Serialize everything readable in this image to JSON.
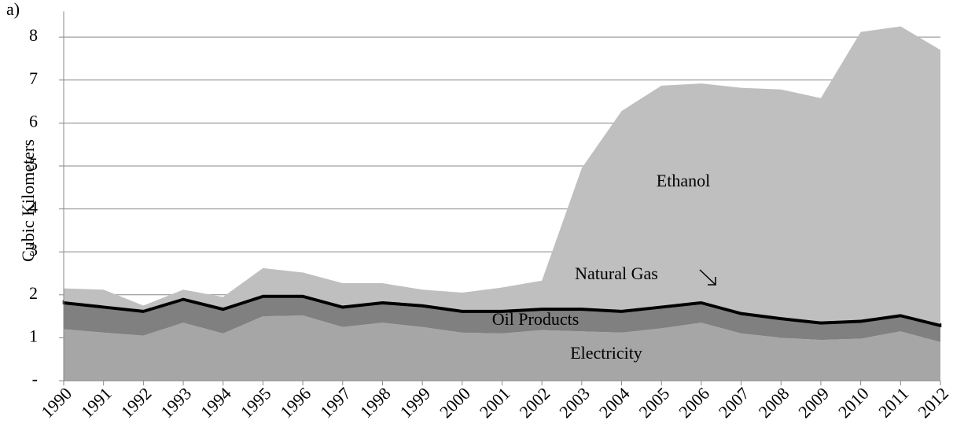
{
  "chart_data": {
    "type": "stacked-area",
    "panel_label": "a)",
    "y_label": "Cubic Kilometers",
    "categories": [
      "1990",
      "1991",
      "1992",
      "1993",
      "1994",
      "1995",
      "1996",
      "1997",
      "1998",
      "1999",
      "2000",
      "2001",
      "2002",
      "2003",
      "2004",
      "2005",
      "2006",
      "2007",
      "2008",
      "2009",
      "2010",
      "2011",
      "2012"
    ],
    "series": [
      {
        "name": "Electricity",
        "color": "#a6a6a6",
        "values": [
          1.2,
          1.12,
          1.05,
          1.35,
          1.1,
          1.5,
          1.52,
          1.25,
          1.35,
          1.25,
          1.12,
          1.1,
          1.18,
          1.15,
          1.12,
          1.22,
          1.35,
          1.1,
          1.0,
          0.95,
          0.98,
          1.15,
          0.9
        ]
      },
      {
        "name": "Oil Products",
        "color": "#808080",
        "values": [
          0.6,
          0.58,
          0.55,
          0.53,
          0.55,
          0.45,
          0.43,
          0.45,
          0.45,
          0.48,
          0.48,
          0.5,
          0.47,
          0.5,
          0.48,
          0.48,
          0.45,
          0.45,
          0.43,
          0.38,
          0.39,
          0.35,
          0.37
        ]
      },
      {
        "name": "Natural Gas",
        "color": "#000000",
        "values": [
          0.05,
          0.05,
          0.05,
          0.05,
          0.05,
          0.05,
          0.05,
          0.05,
          0.05,
          0.05,
          0.05,
          0.05,
          0.05,
          0.05,
          0.05,
          0.05,
          0.05,
          0.05,
          0.05,
          0.05,
          0.05,
          0.05,
          0.05
        ]
      },
      {
        "name": "Ethanol",
        "color": "#bfbfbf",
        "values": [
          0.3,
          0.37,
          0.1,
          0.19,
          0.25,
          0.62,
          0.52,
          0.52,
          0.42,
          0.34,
          0.4,
          0.52,
          0.63,
          3.25,
          4.63,
          5.12,
          5.07,
          5.22,
          5.3,
          5.2,
          6.7,
          6.7,
          6.38
        ]
      }
    ],
    "ylim": [
      0,
      8.6
    ],
    "yticks": [
      {
        "value": 0,
        "label": "-"
      },
      1,
      2,
      3,
      4,
      5,
      6,
      7,
      8
    ],
    "grid": true
  }
}
